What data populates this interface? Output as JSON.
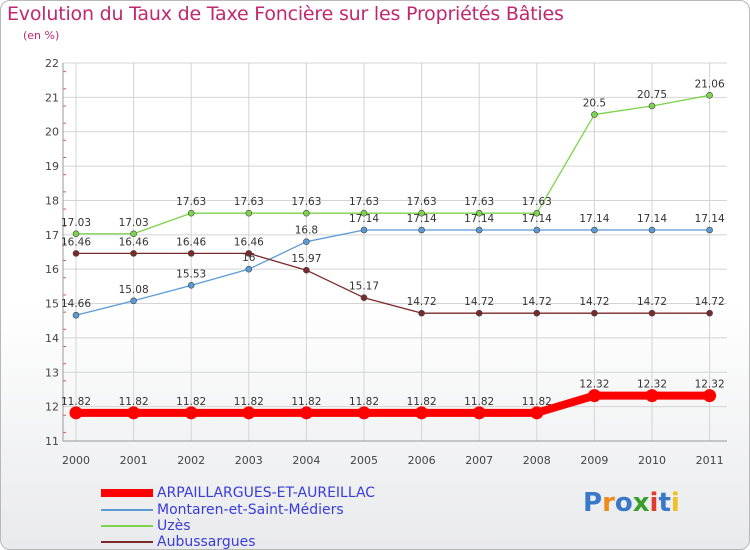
{
  "title": "Evolution du Taux de Taxe Foncière sur les Propriétés Bâties",
  "unit": "(en %)",
  "chart_data": {
    "type": "line",
    "x": [
      "2000",
      "2001",
      "2002",
      "2003",
      "2004",
      "2005",
      "2006",
      "2007",
      "2008",
      "2009",
      "2010",
      "2011"
    ],
    "ylim": [
      11,
      22
    ],
    "yticks": [
      "11",
      "12",
      "13",
      "14",
      "15",
      "16",
      "17",
      "18",
      "19",
      "20",
      "21",
      "22"
    ],
    "grid": true,
    "legend_position": "bottom-left",
    "series": [
      {
        "name": "ARPAILLARGUES-ET-AUREILLAC",
        "color": "#ff0000",
        "values": [
          11.82,
          11.82,
          11.82,
          11.82,
          11.82,
          11.82,
          11.82,
          11.82,
          11.82,
          12.32,
          12.32,
          12.32
        ],
        "labels": [
          "11.82",
          "11.82",
          "11.82",
          "11.82",
          "11.82",
          "11.82",
          "11.82",
          "11.82",
          "11.82",
          "12.32",
          "12.32",
          "12.32"
        ]
      },
      {
        "name": "Montaren-et-Saint-Médiers",
        "color": "#5b9bd5",
        "values": [
          14.66,
          15.08,
          15.53,
          16,
          16.8,
          17.14,
          17.14,
          17.14,
          17.14,
          17.14,
          17.14,
          17.14
        ],
        "labels": [
          "14.66",
          "15.08",
          "15.53",
          "16",
          "16.8",
          "17.14",
          "17.14",
          "17.14",
          "17.14",
          "17.14",
          "17.14",
          "17.14"
        ]
      },
      {
        "name": "Uzès",
        "color": "#7dd34b",
        "values": [
          17.03,
          17.03,
          17.63,
          17.63,
          17.63,
          17.63,
          17.63,
          17.63,
          17.63,
          20.5,
          20.75,
          21.06
        ],
        "labels": [
          "17.03",
          "17.03",
          "17.63",
          "17.63",
          "17.63",
          "17.63",
          "17.63",
          "17.63",
          "17.63",
          "20.5",
          "20.75",
          "21.06"
        ]
      },
      {
        "name": "Aubussargues",
        "color": "#7a2a2a",
        "values": [
          16.46,
          16.46,
          16.46,
          16.46,
          15.97,
          15.17,
          14.72,
          14.72,
          14.72,
          14.72,
          14.72,
          14.72
        ],
        "labels": [
          "16.46",
          "16.46",
          "16.46",
          "16.46",
          "15.97",
          "15.17",
          "14.72",
          "14.72",
          "14.72",
          "14.72",
          "14.72",
          "14.72"
        ]
      }
    ]
  },
  "logo": {
    "text": "Proxiti",
    "letter_colors": [
      "#3a78c9",
      "#f08a1c",
      "#3a78c9",
      "#3aa02c",
      "#e23b2b",
      "#3a78c9",
      "#f0c020"
    ]
  }
}
